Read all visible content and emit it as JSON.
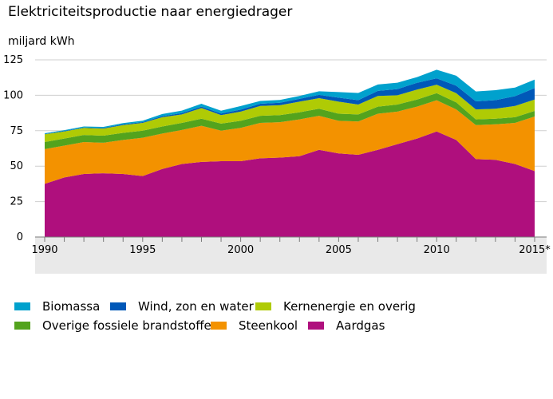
{
  "chart_data": {
    "type": "area",
    "stacked": true,
    "title": "Elektriciteitsproductie naar energiedrager",
    "ylabel": "miljard kWh",
    "xlabel": "",
    "ylim": [
      0,
      125
    ],
    "yticks": [
      0,
      25,
      50,
      75,
      100,
      125
    ],
    "xticks": [
      {
        "value": 1990,
        "label": "1990"
      },
      {
        "value": 1995,
        "label": "1995"
      },
      {
        "value": 2000,
        "label": "2000"
      },
      {
        "value": 2005,
        "label": "2005"
      },
      {
        "value": 2010,
        "label": "2010"
      },
      {
        "value": 2015,
        "label": "2015*"
      }
    ],
    "grid": "horizontal",
    "legend_position": "bottom",
    "x": [
      1990,
      1991,
      1992,
      1993,
      1994,
      1995,
      1996,
      1997,
      1998,
      1999,
      2000,
      2001,
      2002,
      2003,
      2004,
      2005,
      2006,
      2007,
      2008,
      2009,
      2010,
      2011,
      2012,
      2013,
      2014,
      2015
    ],
    "series": [
      {
        "name": "Aardgas",
        "color": "#af0f7d",
        "values": [
          37.5,
          42,
          44.5,
          45,
          44.5,
          43,
          48,
          51.5,
          53,
          53.5,
          53.5,
          55.5,
          56,
          57,
          61.5,
          59,
          58,
          61.5,
          65.5,
          69.5,
          74.5,
          68.5,
          55,
          54.5,
          51.5,
          46.5
        ]
      },
      {
        "name": "Steenkool",
        "color": "#f39200",
        "values": [
          24.5,
          22.5,
          22.5,
          21.5,
          24,
          27,
          25,
          24,
          25.5,
          21.5,
          23.5,
          25,
          25,
          26,
          24,
          23,
          23.5,
          25.5,
          23,
          22.5,
          22,
          21.5,
          24,
          25,
          29,
          38.5
        ]
      },
      {
        "name": "Overige fossiele brandstoffen",
        "color": "#53a31d",
        "values": [
          5,
          5,
          5,
          5,
          5,
          5,
          5,
          5,
          5,
          5,
          5,
          5,
          5,
          5,
          5,
          5,
          5,
          5,
          5,
          5,
          5,
          5,
          4,
          4,
          4,
          4
        ]
      },
      {
        "name": "Kernenergie en overig",
        "color": "#afcb05",
        "values": [
          5.5,
          5,
          5,
          5,
          5.5,
          5.5,
          6.5,
          6,
          7.5,
          6,
          6.5,
          7,
          7,
          7.5,
          7.5,
          8.5,
          7,
          7.5,
          6.5,
          7,
          6,
          6.5,
          7,
          7,
          8,
          8
        ]
      },
      {
        "name": "Wind, zon en water",
        "color": "#0058b8",
        "values": [
          0.2,
          0.3,
          0.3,
          0.4,
          0.5,
          0.6,
          0.8,
          0.9,
          1,
          1.1,
          1.4,
          1.5,
          1.7,
          2,
          2.3,
          2.8,
          3.1,
          3.6,
          4.4,
          4.8,
          4.5,
          5.3,
          5.7,
          6.1,
          6.9,
          8.1
        ]
      },
      {
        "name": "Biomassa",
        "color": "#00a1cd",
        "values": [
          0.5,
          0.6,
          0.7,
          0.8,
          0.9,
          1,
          1.5,
          1.8,
          2,
          2,
          2.5,
          2,
          2,
          2,
          2.5,
          4,
          5,
          4.5,
          4.5,
          4,
          6,
          7,
          7,
          7,
          6,
          6
        ]
      }
    ]
  },
  "legend": {
    "rows": [
      [
        "Biomassa",
        "Wind, zon en water",
        "Kernenergie en overig"
      ],
      [
        "Overige fossiele brandstoffen",
        "Steenkool",
        "Aardgas"
      ]
    ]
  }
}
